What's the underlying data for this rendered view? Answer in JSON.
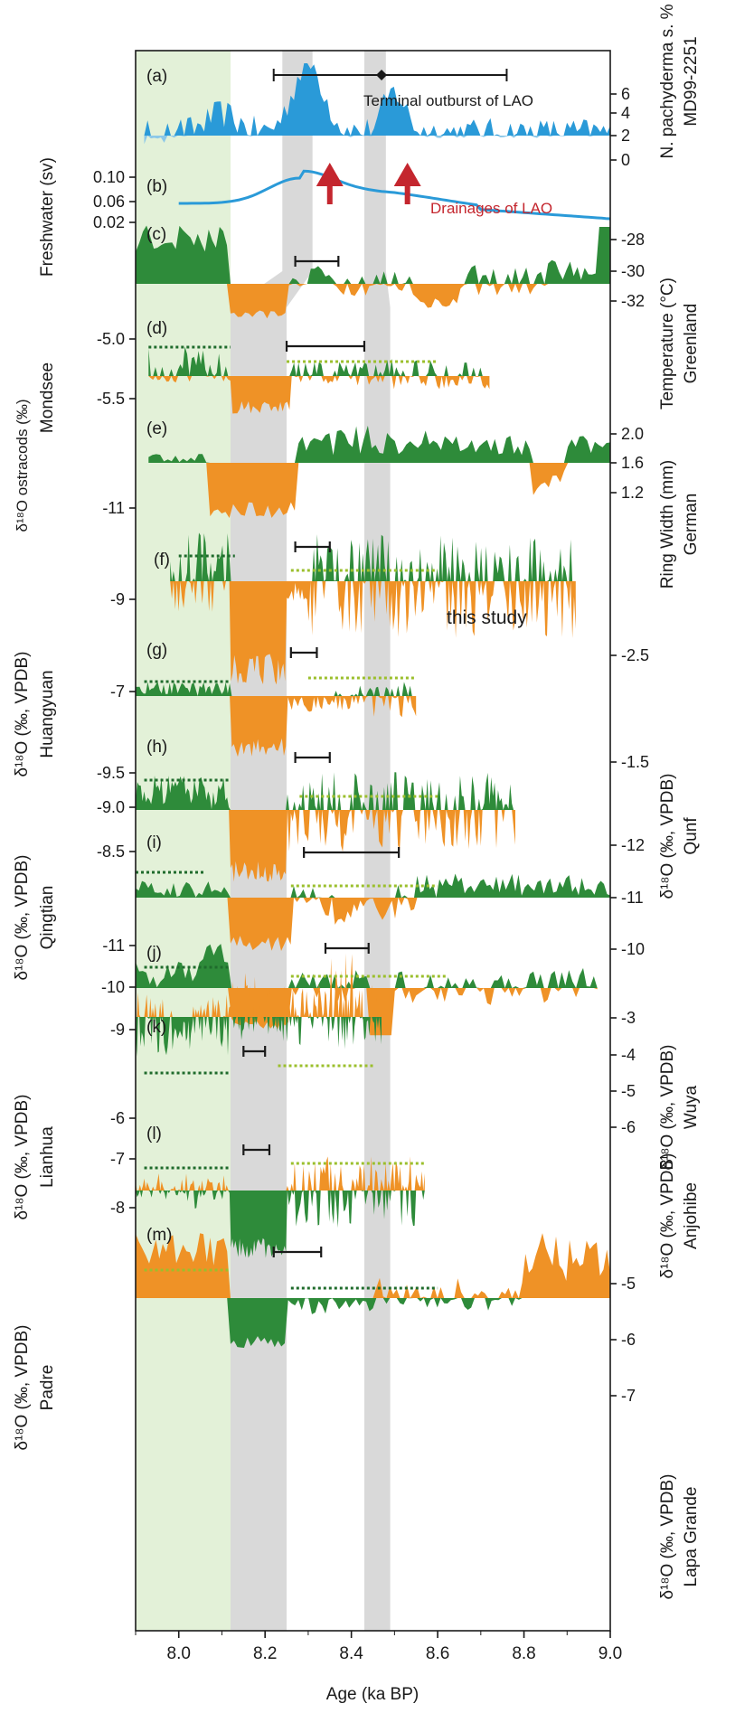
{
  "colors": {
    "green": "#2e8b3a",
    "orange": "#ef9226",
    "blue": "#2a9ad8",
    "light_blue": "#8cc8e8",
    "red": "#c4262e",
    "olive_dotted": "#9bbf2c",
    "dark_dotted": "#1f6b2c",
    "gray_band": "#d9d9d9",
    "green_band": "#e3f1d8"
  },
  "chart_data": {
    "type": "area",
    "xlabel": "Age (ka BP)",
    "xlim": [
      7.9,
      9.0
    ],
    "x_ticks": [
      8.0,
      8.2,
      8.4,
      8.6,
      8.8,
      9.0
    ],
    "x_tick_labels": [
      "8.0",
      "8.2",
      "8.4",
      "8.6",
      "8.8",
      "9.0"
    ],
    "shaded_intervals": [
      {
        "kind": "green",
        "from": 7.9,
        "to": 8.12
      },
      {
        "kind": "gray",
        "from_top": [
          8.24,
          8.31
        ],
        "from_bottom": [
          8.12,
          8.25
        ]
      },
      {
        "kind": "gray",
        "from_top": [
          8.43,
          8.48
        ],
        "from_bottom": [
          8.43,
          8.49
        ]
      }
    ],
    "annotations": {
      "terminal_outburst": "Terminal outburst of LAO",
      "drainages": "Drainages of LAO",
      "this_study": "this study",
      "outburst_age": 8.47,
      "outburst_error": [
        8.22,
        8.76
      ],
      "drainage_ages": [
        8.35,
        8.53
      ]
    },
    "panels": [
      {
        "tag": "(a)",
        "right_label": "N. pachyderma s. %",
        "right_label2": "MD99-2251",
        "right_ticks": [
          "6",
          "4",
          "2",
          "0"
        ],
        "right_tick_values": [
          6,
          4,
          2,
          0
        ]
      },
      {
        "tag": "(b)",
        "left_label": "Freshwater (sv)",
        "left_ticks": [
          "0.10",
          "0.06",
          "0.02"
        ],
        "left_tick_values": [
          0.1,
          0.06,
          0.02
        ]
      },
      {
        "tag": "(c)",
        "right_label": "Temperature (°C)",
        "right_label2": "Greenland",
        "right_ticks": [
          "-28",
          "-30",
          "-32"
        ],
        "right_tick_values": [
          -28,
          -30,
          -32
        ]
      },
      {
        "tag": "(d)",
        "left_label": "δ¹⁸O ostracods (‰)",
        "left_label2": "Mondsee",
        "left_ticks": [
          "-5.0",
          "-5.5"
        ],
        "left_tick_values": [
          -5.0,
          -5.5
        ]
      },
      {
        "tag": "(e)",
        "right_label": "Ring Width (mm)",
        "right_label2": "German",
        "right_ticks": [
          "2.0",
          "1.6",
          "1.2"
        ],
        "right_tick_values": [
          2.0,
          1.6,
          1.2
        ]
      },
      {
        "tag": "(f)",
        "left_label": "δ¹⁸O (‰, VPDB)",
        "left_label2": "Huangyuan",
        "left_ticks": [
          "-11",
          "-9",
          "-7"
        ],
        "left_tick_values": [
          -11,
          -9,
          -7
        ]
      },
      {
        "tag": "(g)",
        "right_label": "δ¹⁸O (‰, VPDB)",
        "right_label2": "Qunf",
        "right_ticks": [
          "-2.5",
          "-1.5"
        ],
        "right_tick_values": [
          -2.5,
          -1.5
        ]
      },
      {
        "tag": "(h)",
        "left_label": "δ¹⁸O (‰, VPDB)",
        "left_label2": "Qingtian",
        "left_ticks": [
          "-9.5",
          "-9.0",
          "-8.5"
        ],
        "left_tick_values": [
          -9.5,
          -9.0,
          -8.5
        ]
      },
      {
        "tag": "(i)",
        "right_label": "δ¹⁸O (‰, VPDB)",
        "right_label2": "Wuya",
        "right_ticks": [
          "-12",
          "-11",
          "-10"
        ],
        "right_tick_values": [
          -12,
          -11,
          -10
        ]
      },
      {
        "tag": "(j)",
        "left_label": "δ¹⁸O (‰, VPDB)",
        "left_label2": "Lianhua",
        "left_ticks": [
          "-11",
          "-10",
          "-9"
        ],
        "left_tick_values": [
          -11,
          -10,
          -9
        ]
      },
      {
        "tag": "(k)",
        "right_label": "δ¹⁸O (‰, VPDB)",
        "right_label2": "Anjohibe",
        "right_ticks": [
          "-3",
          "-4",
          "-5",
          "-6"
        ],
        "right_tick_values": [
          -3,
          -4,
          -5,
          -6
        ]
      },
      {
        "tag": "(l)",
        "left_label": "δ¹⁸O (‰, VPDB)",
        "left_label2": "Padre",
        "left_ticks": [
          "-6",
          "-7",
          "-8"
        ],
        "left_tick_values": [
          -6,
          -7,
          -8
        ]
      },
      {
        "tag": "(m)",
        "right_label": "δ¹⁸O (‰, VPDB)",
        "right_label2": "Lapa Grande",
        "right_ticks": [
          "-5",
          "-6",
          "-7"
        ],
        "right_tick_values": [
          -5,
          -6,
          -7
        ]
      }
    ],
    "event_error_bars": [
      {
        "panel": "(c)",
        "from": 8.27,
        "to": 8.37
      },
      {
        "panel": "(d)",
        "from": 8.25,
        "to": 8.43
      },
      {
        "panel": "(f)",
        "from": 8.27,
        "to": 8.35
      },
      {
        "panel": "(g)",
        "from": 8.26,
        "to": 8.32
      },
      {
        "panel": "(h)",
        "from": 8.27,
        "to": 8.35
      },
      {
        "panel": "(i)",
        "from": 8.29,
        "to": 8.51
      },
      {
        "panel": "(j)",
        "from": 8.34,
        "to": 8.44
      },
      {
        "panel": "(k)",
        "from": 8.15,
        "to": 8.2
      },
      {
        "panel": "(l)",
        "from": 8.15,
        "to": 8.21
      },
      {
        "panel": "(m)",
        "from": 8.22,
        "to": 8.33
      }
    ]
  }
}
